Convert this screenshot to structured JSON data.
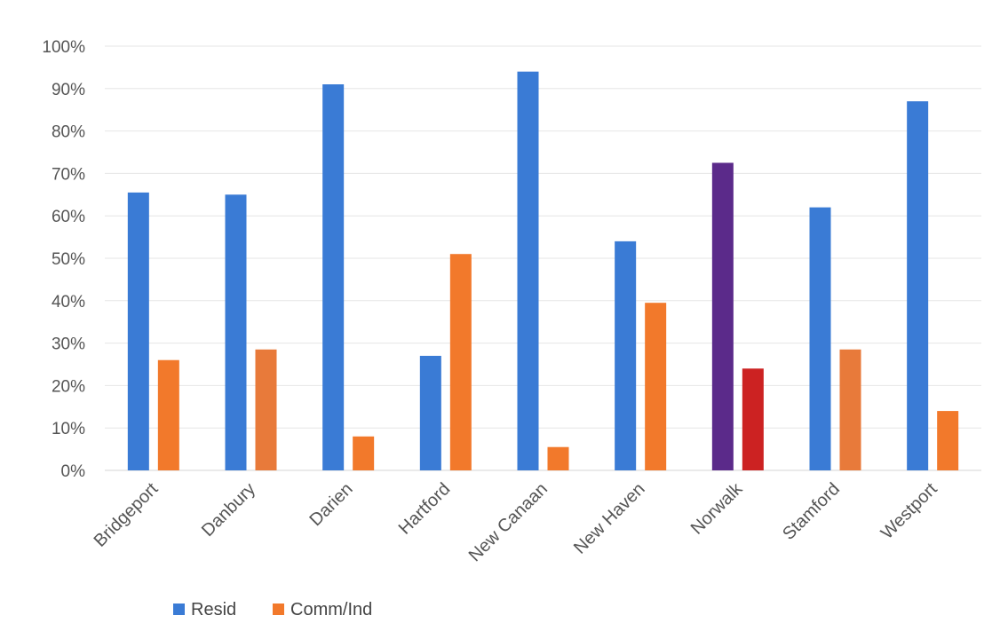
{
  "chart_data": {
    "type": "bar",
    "categories": [
      "Bridgeport",
      "Danbury",
      "Darien",
      "Hartford",
      "New Canaan",
      "New Haven",
      "Norwalk",
      "Stamford",
      "Westport"
    ],
    "series": [
      {
        "name": "Resid",
        "values": [
          65.5,
          65,
          91,
          27,
          94,
          54,
          72.5,
          62,
          87
        ],
        "color": "#3a7bd5",
        "point_colors": [
          "#3a7bd5",
          "#3a7bd5",
          "#3a7bd5",
          "#3a7bd5",
          "#3a7bd5",
          "#3a7bd5",
          "#5b2a8a",
          "#3a7bd5",
          "#3a7bd5"
        ]
      },
      {
        "name": "Comm/Ind",
        "values": [
          26,
          28.5,
          8,
          51,
          5.5,
          39.5,
          24,
          28.5,
          14
        ],
        "color": "#f2792b",
        "point_colors": [
          "#f2792b",
          "#e87a3a",
          "#f2792b",
          "#f2792b",
          "#f2792b",
          "#f2792b",
          "#cc2222",
          "#e87a3a",
          "#f2792b"
        ]
      }
    ],
    "y_ticks": [
      "0%",
      "10%",
      "20%",
      "30%",
      "40%",
      "50%",
      "60%",
      "70%",
      "80%",
      "90%",
      "100%"
    ],
    "ylim": [
      0,
      100
    ],
    "grid": true,
    "legend_position": "bottom-left"
  }
}
